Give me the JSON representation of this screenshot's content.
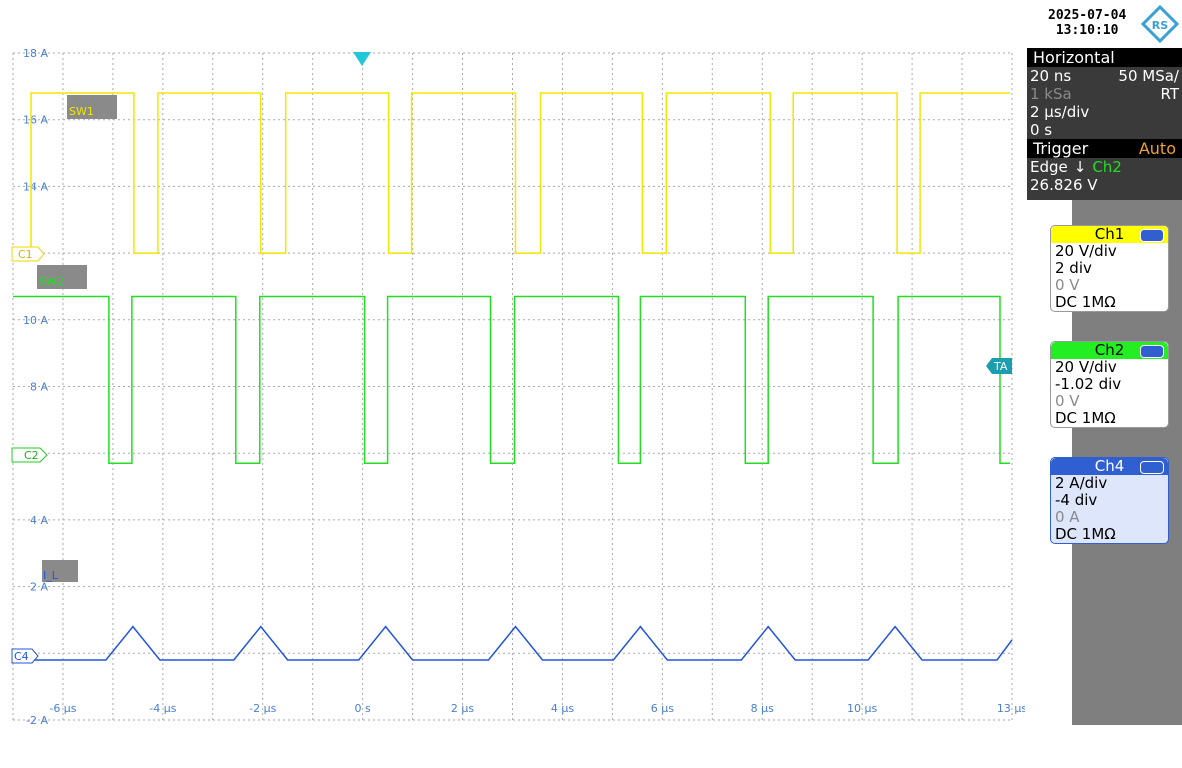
{
  "header": {
    "date": "2025-07-04",
    "time": "13:10:10"
  },
  "chart_data": {
    "type": "line",
    "xlim": [
      -7,
      13
    ],
    "ylim": [
      -2,
      18
    ],
    "xticks": [
      {
        "value": -6,
        "label": "-6 µs"
      },
      {
        "value": -4,
        "label": "-4 µs"
      },
      {
        "value": -2,
        "label": "-2 µs"
      },
      {
        "value": 0,
        "label": "0 s"
      },
      {
        "value": 2,
        "label": "2 µs"
      },
      {
        "value": 4,
        "label": "4 µs"
      },
      {
        "value": 6,
        "label": "6 µs"
      },
      {
        "value": 8,
        "label": "8 µs"
      },
      {
        "value": 10,
        "label": "10 µs"
      },
      {
        "value": 13,
        "label": "13 µs"
      }
    ],
    "yticks": [
      {
        "value": -2,
        "label": "-2 A"
      },
      {
        "value": 2,
        "label": "2 A"
      },
      {
        "value": 4,
        "label": "4 A"
      },
      {
        "value": 8,
        "label": "8 A"
      },
      {
        "value": 10,
        "label": "10 A"
      },
      {
        "value": 14,
        "label": "14 A"
      },
      {
        "value": 16,
        "label": "16 A"
      },
      {
        "value": 18,
        "label": "18 A"
      }
    ],
    "xgrid": [
      -7,
      -6,
      -5,
      -4,
      -3,
      -2,
      -1,
      0,
      1,
      2,
      3,
      4,
      5,
      6,
      7,
      8,
      9,
      10,
      11,
      12,
      13
    ],
    "ygrid": [
      -2,
      0,
      2,
      4,
      6,
      8,
      10,
      12,
      14,
      16,
      18
    ],
    "grid": true,
    "series": [
      {
        "name": "SW1",
        "color": "#f2e600",
        "x": [
          -6.64,
          -6.64,
          -4.58,
          -4.58,
          -4.1,
          -4.1,
          -2.04,
          -2.04,
          -1.54,
          -1.54,
          0.52,
          0.52,
          0.98,
          0.98,
          3.06,
          3.06,
          3.56,
          3.56,
          5.6,
          5.6,
          6.08,
          6.08,
          8.16,
          8.16,
          8.62,
          8.62,
          10.7,
          10.7,
          11.16,
          11.16,
          12.96
        ],
        "values": [
          12,
          16.8,
          16.8,
          12,
          12,
          16.8,
          16.8,
          12,
          12,
          16.8,
          16.8,
          12,
          12,
          16.8,
          16.8,
          12,
          12,
          16.8,
          16.8,
          12,
          12,
          16.8,
          16.8,
          12,
          12,
          16.8,
          16.8,
          12,
          12,
          16.8,
          16.8
        ]
      },
      {
        "name": "SW2",
        "color": "#22dd22",
        "x": [
          -7,
          -5.08,
          -5.08,
          -4.62,
          -4.62,
          -2.54,
          -2.54,
          -2.06,
          -2.06,
          0.04,
          0.04,
          0.5,
          0.5,
          2.56,
          2.56,
          3.04,
          3.04,
          5.12,
          5.12,
          5.56,
          5.56,
          7.66,
          7.66,
          8.12,
          8.12,
          10.22,
          10.22,
          10.72,
          10.72,
          12.76,
          12.76,
          12.96
        ],
        "values": [
          10.7,
          10.7,
          5.7,
          5.7,
          10.7,
          10.7,
          5.7,
          5.7,
          10.7,
          10.7,
          5.7,
          5.7,
          10.7,
          10.7,
          5.7,
          5.7,
          10.7,
          10.7,
          5.7,
          5.7,
          10.7,
          10.7,
          5.7,
          5.7,
          10.7,
          10.7,
          5.7,
          5.7,
          10.7,
          10.7,
          5.7,
          5.7
        ]
      },
      {
        "name": "I_L",
        "color": "#2255dd",
        "x": [
          -7,
          -5.14,
          -4.6,
          -4.06,
          -2.58,
          -2.04,
          -1.5,
          -0.08,
          0.46,
          1.0,
          2.52,
          3.06,
          3.6,
          5.02,
          5.56,
          6.1,
          7.58,
          8.12,
          8.66,
          10.12,
          10.66,
          11.2,
          12.7,
          13
        ],
        "values": [
          -0.2,
          -0.2,
          0.8,
          -0.2,
          -0.2,
          0.8,
          -0.2,
          -0.2,
          0.8,
          -0.2,
          -0.2,
          0.8,
          -0.2,
          -0.2,
          0.8,
          -0.2,
          -0.2,
          0.8,
          -0.2,
          -0.2,
          0.8,
          -0.2,
          -0.2,
          0.4
        ]
      }
    ],
    "markers": {
      "c1": "C1",
      "c2": "C2",
      "c4": "C4",
      "trigger": "TA"
    }
  },
  "horizontal": {
    "title": "Horizontal",
    "resolution": "20 ns",
    "rate": "50 MSa/",
    "points": "1 kSa",
    "mode": "RT",
    "scale": "2 µs/div",
    "position": "0 s"
  },
  "trigger": {
    "title": "Trigger",
    "mode": "Auto",
    "type": "Edge",
    "source": "Ch2",
    "level": "26.826 V"
  },
  "channels": [
    {
      "name": "Ch1",
      "scale": "20 V/div",
      "offset": "2 div",
      "level": "0 V",
      "coupling": "DC 1MΩ"
    },
    {
      "name": "Ch2",
      "scale": "20 V/div",
      "offset": "-1.02 div",
      "level": "0 V",
      "coupling": "DC 1MΩ"
    },
    {
      "name": "Ch4",
      "scale": "2 A/div",
      "offset": "-4 div",
      "level": "0 A",
      "coupling": "DC 1MΩ"
    }
  ]
}
